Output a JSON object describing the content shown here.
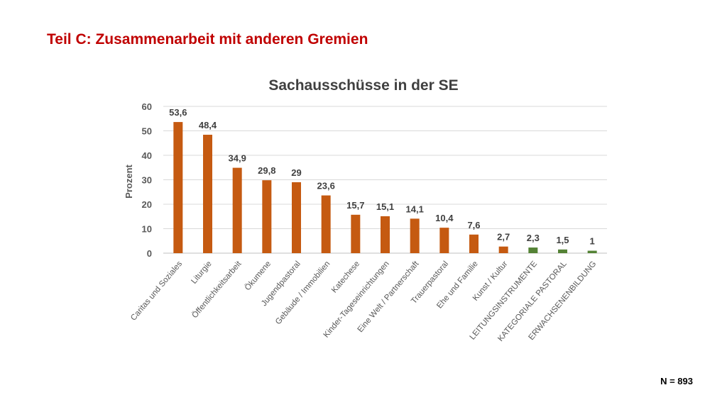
{
  "slide": {
    "title": "Teil C: Zusammenarbeit mit anderen Gremien",
    "footnote": "N = 893"
  },
  "colors": {
    "title": "#c00000",
    "bar_orange": "#c55a11",
    "bar_green": "#548235",
    "axis_text": "#595959",
    "label_text": "#404040",
    "grid": "#d9d9d9"
  },
  "chart_data": {
    "type": "bar",
    "title": "Sachausschüsse in der SE",
    "xlabel": "",
    "ylabel": "Prozent",
    "ylim": [
      0,
      60
    ],
    "yticks": [
      0,
      10,
      20,
      30,
      40,
      50,
      60
    ],
    "grid": true,
    "categories": [
      "Caritas und Soziales",
      "Liturgie",
      "Öffentlichkeitsarbeit",
      "Ökumene",
      "Jugendpastoral",
      "Gebäude / Immobilien",
      "Katechese",
      "Kinder-Tageseinrichtungen",
      "Eine Welt / Partnerschaft",
      "Trauerpastoral",
      "Ehe und Familie",
      "Kunst / Kultur",
      "LEITUNGSINSTRUMENTE",
      "KATEGORIALE PASTORAL",
      "ERWACHSENENBILDUNG"
    ],
    "values": [
      53.6,
      48.4,
      34.9,
      29.8,
      29,
      23.6,
      15.7,
      15.1,
      14.1,
      10.4,
      7.6,
      2.7,
      2.3,
      1.5,
      1
    ],
    "value_labels": [
      "53,6",
      "48,4",
      "34,9",
      "29,8",
      "29",
      "23,6",
      "15,7",
      "15,1",
      "14,1",
      "10,4",
      "7,6",
      "2,7",
      "2,3",
      "1,5",
      "1"
    ],
    "bar_colors": [
      "#c55a11",
      "#c55a11",
      "#c55a11",
      "#c55a11",
      "#c55a11",
      "#c55a11",
      "#c55a11",
      "#c55a11",
      "#c55a11",
      "#c55a11",
      "#c55a11",
      "#c55a11",
      "#548235",
      "#548235",
      "#548235"
    ]
  }
}
